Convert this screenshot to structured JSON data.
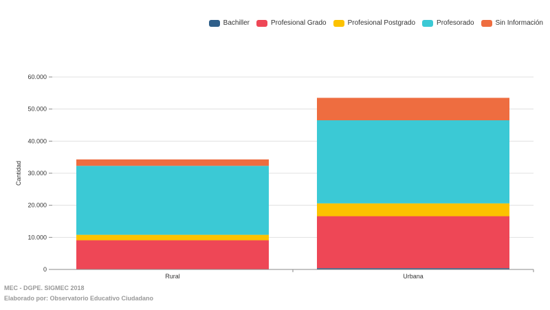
{
  "chart_data": {
    "type": "bar",
    "stacked": true,
    "categories": [
      "Rural",
      "Urbana"
    ],
    "series": [
      {
        "name": "Bachiller",
        "color": "#2f5f8a",
        "values": [
          100,
          400
        ]
      },
      {
        "name": "Profesional Grado",
        "color": "#ee4756",
        "values": [
          9000,
          16200
        ]
      },
      {
        "name": "Profesional Postgrado",
        "color": "#fcc200",
        "values": [
          1700,
          4000
        ]
      },
      {
        "name": "Profesorado",
        "color": "#3bc9d5",
        "values": [
          21500,
          25900
        ]
      },
      {
        "name": "Sin Información",
        "color": "#ee6d40",
        "values": [
          2000,
          7000
        ]
      }
    ],
    "ylabel": "Cantidad",
    "ylim": [
      0,
      60000
    ],
    "yticks": [
      0,
      10000,
      20000,
      30000,
      40000,
      50000,
      60000
    ],
    "ytick_labels": [
      "0",
      "10.000",
      "20.000",
      "30.000",
      "40.000",
      "50.000",
      "60.000"
    ],
    "grid": true,
    "legend_position": "top-right"
  },
  "source": {
    "line1": "MEC - DGPE. SIGMEC 2018",
    "line2": "Elaborado por: Observatorio Educativo Ciudadano"
  }
}
